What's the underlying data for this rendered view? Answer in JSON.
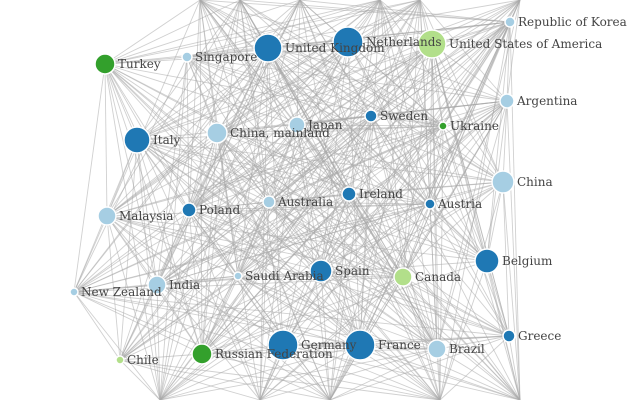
{
  "colors": {
    "dark_blue": "#1f78b4",
    "light_blue": "#a6cee3",
    "green": "#33a02c",
    "light_green": "#b2df8a",
    "edge": "#aaaaaa"
  },
  "nodes": [
    {
      "name": "Republic of Korea",
      "group": "light_blue"
    },
    {
      "name": "Netherlands",
      "group": "dark_blue"
    },
    {
      "name": "United States of America",
      "group": "light_green"
    },
    {
      "name": "United Kingdom",
      "group": "dark_blue"
    },
    {
      "name": "Singapore",
      "group": "light_blue"
    },
    {
      "name": "Turkey",
      "group": "green"
    },
    {
      "name": "Argentina",
      "group": "light_blue"
    },
    {
      "name": "Sweden",
      "group": "dark_blue"
    },
    {
      "name": "Japan",
      "group": "light_blue"
    },
    {
      "name": "Ukraine",
      "group": "green"
    },
    {
      "name": "Italy",
      "group": "dark_blue"
    },
    {
      "name": "China, mainland",
      "group": "light_blue"
    },
    {
      "name": "China",
      "group": "light_blue"
    },
    {
      "name": "Ireland",
      "group": "dark_blue"
    },
    {
      "name": "Austria",
      "group": "dark_blue"
    },
    {
      "name": "Australia",
      "group": "light_blue"
    },
    {
      "name": "Poland",
      "group": "dark_blue"
    },
    {
      "name": "Malaysia",
      "group": "light_blue"
    },
    {
      "name": "Belgium",
      "group": "dark_blue"
    },
    {
      "name": "Spain",
      "group": "dark_blue"
    },
    {
      "name": "Canada",
      "group": "light_green"
    },
    {
      "name": "Saudi Arabia",
      "group": "light_blue"
    },
    {
      "name": "India",
      "group": "light_blue"
    },
    {
      "name": "New Zealand",
      "group": "light_blue"
    },
    {
      "name": "Greece",
      "group": "dark_blue"
    },
    {
      "name": "Germany",
      "group": "dark_blue"
    },
    {
      "name": "France",
      "group": "dark_blue"
    },
    {
      "name": "Brazil",
      "group": "light_blue"
    },
    {
      "name": "Russian Federation",
      "group": "green"
    },
    {
      "name": "Chile",
      "group": "light_green"
    }
  ]
}
